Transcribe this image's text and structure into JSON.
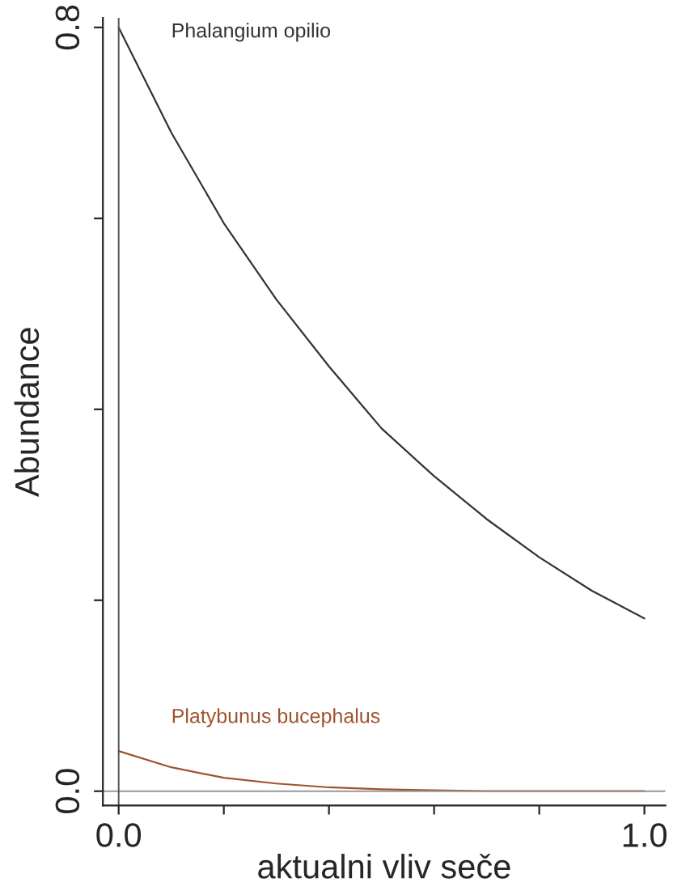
{
  "chart_data": {
    "type": "line",
    "xlabel": "aktualni vliv seče",
    "ylabel": "Abundance",
    "x": [
      0,
      0.1,
      0.2,
      0.3,
      0.4,
      0.5,
      0.6,
      0.7,
      0.8,
      0.9,
      1.0
    ],
    "series": [
      {
        "name": "Phalangium opilio",
        "color": "#333333",
        "values": [
          0.8,
          0.69,
          0.595,
          0.515,
          0.445,
          0.38,
          0.33,
          0.285,
          0.245,
          0.21,
          0.181
        ]
      },
      {
        "name": "Platybunus bucephalus",
        "color": "#a0522d",
        "values": [
          0.042,
          0.025,
          0.014,
          0.008,
          0.004,
          0.002,
          0.001,
          0.0,
          0.0,
          0.0,
          0.0
        ]
      }
    ],
    "xlim": [
      -0.03,
      1.04
    ],
    "ylim": [
      -0.015,
      0.81
    ],
    "xticks": [
      {
        "value": 0,
        "label": "0.0"
      },
      {
        "value": 0.2,
        "label": null
      },
      {
        "value": 0.4,
        "label": null
      },
      {
        "value": 0.6,
        "label": null
      },
      {
        "value": 0.8,
        "label": null
      },
      {
        "value": 1.0,
        "label": "1.0"
      }
    ],
    "yticks": [
      {
        "value": 0,
        "label": "0.0"
      },
      {
        "value": 0.2,
        "label": null
      },
      {
        "value": 0.4,
        "label": null
      },
      {
        "value": 0.6,
        "label": null
      },
      {
        "value": 0.8,
        "label": "0.8"
      }
    ],
    "ref_lines": [
      {
        "axis": "y",
        "value": 0,
        "color": "#999999"
      },
      {
        "axis": "x",
        "value": 0,
        "color": "#555555"
      }
    ],
    "grid": false,
    "legend": false,
    "line_style": "solid",
    "marker": "none"
  }
}
